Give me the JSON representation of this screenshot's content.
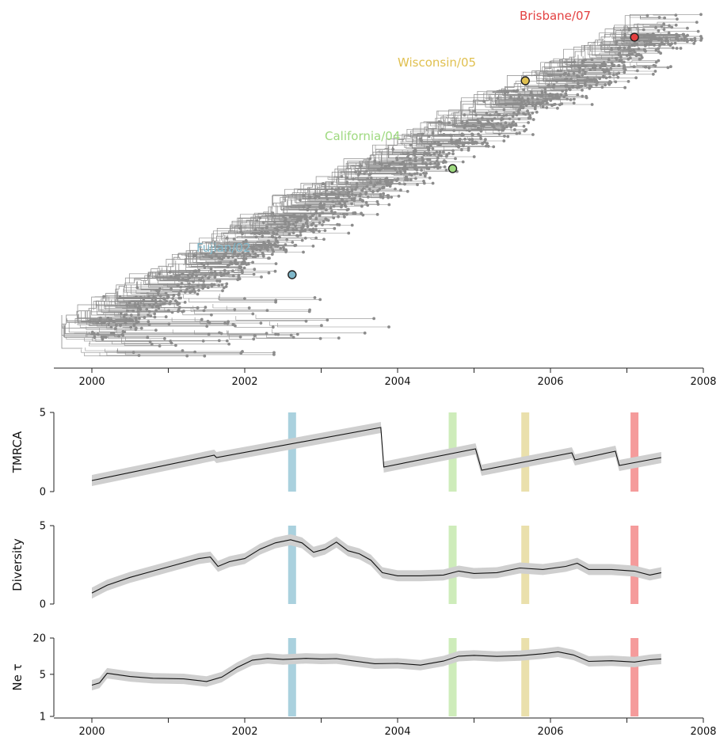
{
  "chart_data": [
    {
      "type": "tree",
      "x_ticks": [
        "2000",
        "2002",
        "2004",
        "2006",
        "2008"
      ],
      "xlim": [
        1999.5,
        2008
      ],
      "strains": [
        {
          "name": "Fujian/02",
          "x": 2002.62,
          "color": "#7fb7c9"
        },
        {
          "name": "California/04",
          "x": 2004.72,
          "color": "#9ed97f"
        },
        {
          "name": "Wisconsin/05",
          "x": 2005.67,
          "color": "#e0c050"
        },
        {
          "name": "Brisbane/07",
          "x": 2007.1,
          "color": "#e34040"
        }
      ]
    },
    {
      "type": "line",
      "ylabel": "TMRCA",
      "y_ticks": [
        "0",
        "5"
      ],
      "ylim": [
        0,
        5
      ],
      "xlim": [
        1999.5,
        2008
      ],
      "series": [
        {
          "x": [
            2000.0,
            2001.6,
            2001.63,
            2003.78,
            2003.82,
            2005.02,
            2005.1,
            2006.28,
            2006.32,
            2006.85,
            2006.9,
            2007.45
          ],
          "y": [
            0.7,
            2.3,
            2.15,
            4.05,
            1.55,
            2.7,
            1.35,
            2.45,
            2.0,
            2.55,
            1.65,
            2.15
          ]
        }
      ],
      "highlights": [
        2002.62,
        2004.72,
        2005.67,
        2007.1
      ]
    },
    {
      "type": "line",
      "ylabel": "Diversity",
      "y_ticks": [
        "0",
        "5"
      ],
      "ylim": [
        0,
        5
      ],
      "xlim": [
        1999.5,
        2008
      ],
      "series": [
        {
          "x": [
            2000.0,
            2000.2,
            2000.5,
            2000.8,
            2001.1,
            2001.4,
            2001.55,
            2001.65,
            2001.8,
            2002.0,
            2002.2,
            2002.4,
            2002.6,
            2002.75,
            2002.9,
            2003.05,
            2003.2,
            2003.35,
            2003.5,
            2003.65,
            2003.8,
            2004.0,
            2004.3,
            2004.6,
            2004.8,
            2005.0,
            2005.3,
            2005.6,
            2005.9,
            2006.2,
            2006.35,
            2006.5,
            2006.8,
            2007.1,
            2007.3,
            2007.45
          ],
          "y": [
            0.7,
            1.2,
            1.7,
            2.1,
            2.5,
            2.9,
            3.0,
            2.4,
            2.7,
            2.9,
            3.5,
            3.9,
            4.1,
            3.9,
            3.3,
            3.5,
            3.95,
            3.4,
            3.2,
            2.8,
            2.0,
            1.8,
            1.8,
            1.85,
            2.1,
            1.95,
            2.0,
            2.3,
            2.2,
            2.4,
            2.6,
            2.2,
            2.2,
            2.1,
            1.85,
            2.0
          ]
        }
      ],
      "highlights": [
        2002.62,
        2004.72,
        2005.67,
        2007.1
      ]
    },
    {
      "type": "line",
      "ylabel": "Ne τ",
      "y_ticks": [
        "1",
        "5",
        "20"
      ],
      "yscale": "log",
      "ylim": [
        1,
        20
      ],
      "xlim": [
        1999.5,
        2008
      ],
      "series": [
        {
          "x": [
            2000.0,
            2000.1,
            2000.2,
            2000.3,
            2000.5,
            2000.8,
            2001.2,
            2001.5,
            2001.7,
            2001.9,
            2002.1,
            2002.3,
            2002.5,
            2002.8,
            2003.0,
            2003.2,
            2003.4,
            2003.7,
            2004.0,
            2004.3,
            2004.6,
            2004.8,
            2005.0,
            2005.3,
            2005.6,
            2005.9,
            2006.1,
            2006.3,
            2006.5,
            2006.8,
            2007.1,
            2007.3,
            2007.45
          ],
          "y": [
            3.3,
            3.6,
            5.2,
            5.0,
            4.6,
            4.3,
            4.2,
            3.8,
            4.5,
            6.5,
            8.6,
            9.2,
            8.8,
            9.2,
            9.0,
            9.1,
            8.4,
            7.5,
            7.6,
            7.1,
            8.3,
            10.0,
            10.3,
            9.9,
            10.2,
            11.0,
            11.8,
            10.5,
            8.2,
            8.4,
            8.0,
            8.7,
            9.0
          ]
        }
      ],
      "highlights": [
        2002.62,
        2004.72,
        2005.67,
        2007.1
      ]
    }
  ]
}
